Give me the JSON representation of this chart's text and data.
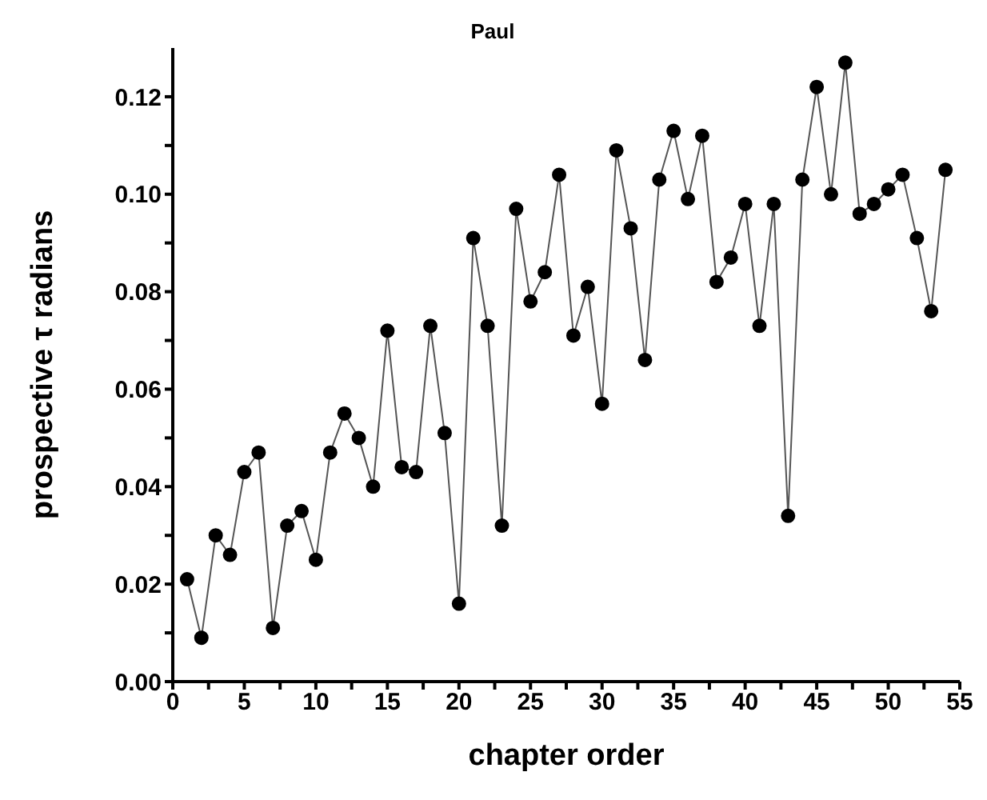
{
  "chart_data": {
    "type": "line",
    "title": "Paul",
    "xlabel": "chapter order",
    "ylabel": "prospective τ radians",
    "x": [
      1,
      2,
      3,
      4,
      5,
      6,
      7,
      8,
      9,
      10,
      11,
      12,
      13,
      14,
      15,
      16,
      17,
      18,
      19,
      20,
      21,
      22,
      23,
      24,
      25,
      26,
      27,
      28,
      29,
      30,
      31,
      32,
      33,
      34,
      35,
      36,
      37,
      38,
      39,
      40,
      41,
      42,
      43,
      44,
      45,
      46,
      47,
      48,
      49,
      50,
      51,
      52,
      53,
      54
    ],
    "series": [
      {
        "color": "#000000",
        "values": [
          0.021,
          0.009,
          0.03,
          0.026,
          0.043,
          0.047,
          0.011,
          0.032,
          0.035,
          0.025,
          0.047,
          0.055,
          0.05,
          0.04,
          0.072,
          0.044,
          0.043,
          0.073,
          0.051,
          0.016,
          0.091,
          0.073,
          0.032,
          0.097,
          0.078,
          0.084,
          0.104,
          0.071,
          0.081,
          0.057,
          0.109,
          0.093,
          0.066,
          0.103,
          0.113,
          0.099,
          0.112,
          0.082,
          0.087,
          0.098,
          0.073,
          0.098,
          0.034,
          0.103,
          0.122,
          0.1,
          0.127,
          0.096,
          0.098,
          0.101,
          0.104,
          0.091,
          0.076,
          0.105
        ]
      }
    ],
    "xlim": [
      0,
      55
    ],
    "xticks": [
      0,
      {
        "value": 2.5,
        "label": null
      },
      5,
      {
        "value": 7.5,
        "label": null
      },
      10,
      {
        "value": 12.5,
        "label": null
      },
      15,
      {
        "value": 17.5,
        "label": null
      },
      20,
      {
        "value": 22.5,
        "label": null
      },
      25,
      {
        "value": 27.5,
        "label": null
      },
      30,
      {
        "value": 32.5,
        "label": null
      },
      35,
      {
        "value": 37.5,
        "label": null
      },
      40,
      {
        "value": 42.5,
        "label": null
      },
      45,
      {
        "value": 47.5,
        "label": null
      },
      50,
      {
        "value": 52.5,
        "label": null
      },
      55
    ],
    "ylim": [
      0,
      0.13
    ],
    "yticks": [
      {
        "value": 0,
        "label": "0.00"
      },
      {
        "value": 0.01,
        "label": null
      },
      {
        "value": 0.02,
        "label": "0.02"
      },
      {
        "value": 0.03,
        "label": null
      },
      {
        "value": 0.04,
        "label": "0.04"
      },
      {
        "value": 0.05,
        "label": null
      },
      {
        "value": 0.06,
        "label": "0.06"
      },
      {
        "value": 0.07,
        "label": null
      },
      {
        "value": 0.08,
        "label": "0.08"
      },
      {
        "value": 0.09,
        "label": null
      },
      {
        "value": 0.1,
        "label": "0.10"
      },
      {
        "value": 0.11,
        "label": null
      },
      {
        "value": 0.12,
        "label": "0.12"
      }
    ],
    "grid": false,
    "legend": false,
    "marker": "circle",
    "line_style": "solid"
  }
}
